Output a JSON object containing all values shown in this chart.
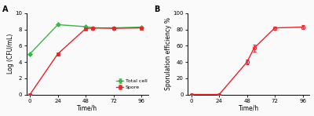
{
  "panel_A": {
    "x_total": [
      0,
      24,
      48,
      54,
      72,
      96
    ],
    "x_spore": [
      0,
      24,
      48,
      54,
      72,
      96
    ],
    "total_cell_y": [
      5.0,
      8.6,
      8.35,
      8.2,
      8.2,
      8.3
    ],
    "total_cell_yerr": [
      0.08,
      0.18,
      0.12,
      0.08,
      0.08,
      0.08
    ],
    "spore_y": [
      0.0,
      5.0,
      8.1,
      8.2,
      8.15,
      8.2
    ],
    "spore_yerr": [
      0.05,
      0.18,
      0.1,
      0.1,
      0.08,
      0.08
    ],
    "xlabel": "Time/h",
    "ylabel": "Log (CFU/mL)",
    "ylim": [
      0,
      10
    ],
    "yticks": [
      0,
      2,
      4,
      6,
      8,
      10
    ],
    "xticks": [
      0,
      24,
      48,
      72,
      96
    ],
    "label": "A",
    "total_cell_color": "#3CB449",
    "spore_color": "#E8232A",
    "legend_total": "Total cell",
    "legend_spore": "Spore"
  },
  "panel_B": {
    "x": [
      0,
      24,
      48,
      54,
      72,
      96
    ],
    "spore_eff_y": [
      0.0,
      0.0,
      40.0,
      57.0,
      82.0,
      83.0
    ],
    "spore_eff_yerr": [
      0.3,
      0.3,
      3.0,
      4.0,
      2.0,
      2.0
    ],
    "xlabel": "Time/h",
    "ylabel": "Sporulation efficiency %",
    "ylim": [
      0,
      100
    ],
    "yticks": [
      0,
      20,
      40,
      60,
      80,
      100
    ],
    "xticks": [
      0,
      24,
      48,
      72,
      96
    ],
    "label": "B",
    "spore_color": "#E8232A"
  },
  "bg_color": "#FAFAFA",
  "figure_width": 4.0,
  "figure_height": 1.48
}
